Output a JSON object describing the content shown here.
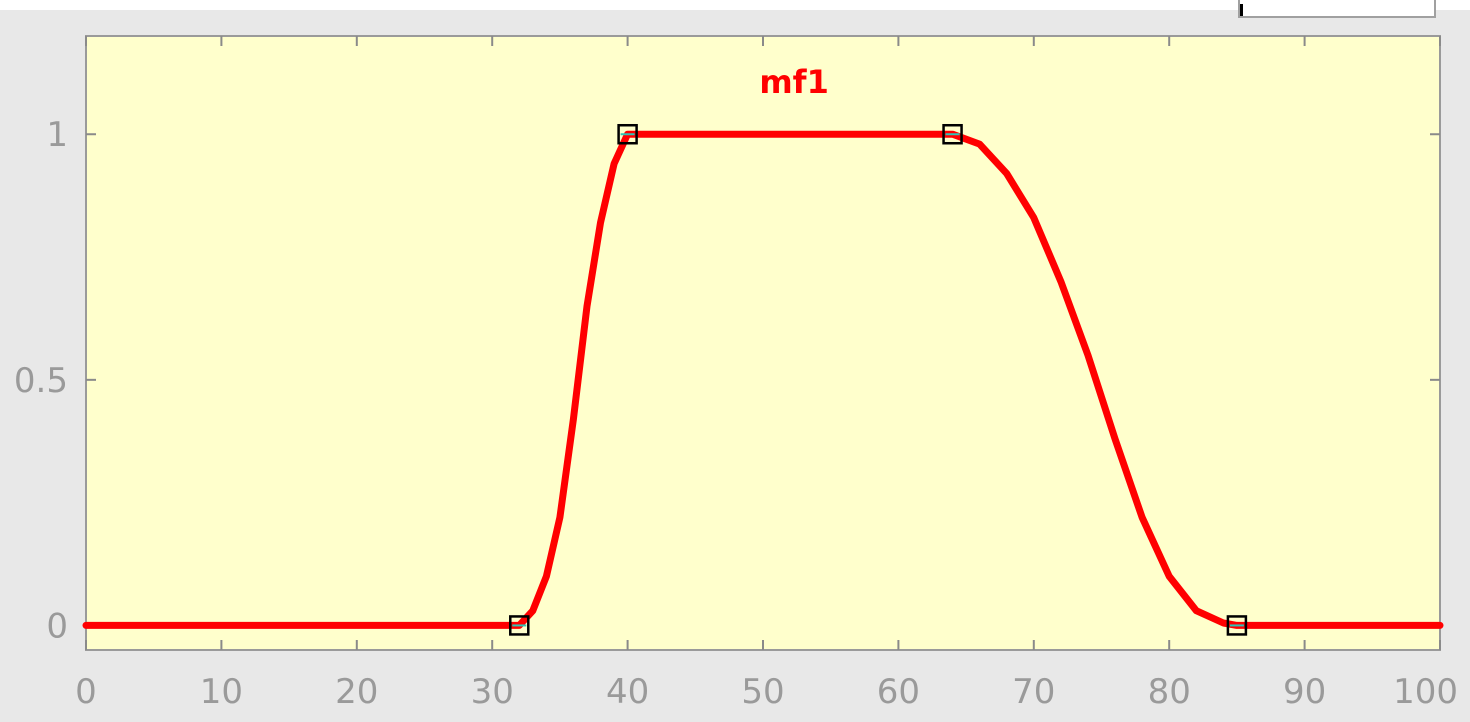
{
  "chart_data": {
    "type": "line",
    "title": "",
    "xlabel": "",
    "ylabel": "",
    "xlim": [
      0,
      100
    ],
    "ylim": [
      -0.05,
      1.2
    ],
    "x_ticks": [
      0,
      10,
      20,
      30,
      40,
      50,
      60,
      70,
      80,
      90,
      100
    ],
    "x_tick_labels": [
      "0",
      "10",
      "20",
      "30",
      "40",
      "50",
      "60",
      "70",
      "80",
      "90",
      "100"
    ],
    "y_ticks": [
      0,
      0.5,
      1
    ],
    "y_tick_labels": [
      "0",
      "0.5",
      "1"
    ],
    "grid": false,
    "background_color": "#ffffcc",
    "series": [
      {
        "name": "mf1",
        "color": "#ff0000",
        "shape": "pi-shaped (S-curve rise, flat top, Z-curve fall)",
        "x": [
          0,
          32,
          33,
          34,
          35,
          36,
          37,
          38,
          39,
          40,
          64,
          66,
          68,
          70,
          72,
          74,
          76,
          78,
          80,
          82,
          84,
          85,
          100
        ],
        "values": [
          0,
          0,
          0.03,
          0.1,
          0.22,
          0.42,
          0.65,
          0.82,
          0.94,
          1,
          1,
          0.98,
          0.92,
          0.83,
          0.7,
          0.55,
          0.38,
          0.22,
          0.1,
          0.03,
          0.005,
          0,
          0
        ]
      }
    ],
    "control_points": [
      {
        "x": 32,
        "y": 0
      },
      {
        "x": 40,
        "y": 1
      },
      {
        "x": 64,
        "y": 1
      },
      {
        "x": 85,
        "y": 0
      }
    ]
  }
}
